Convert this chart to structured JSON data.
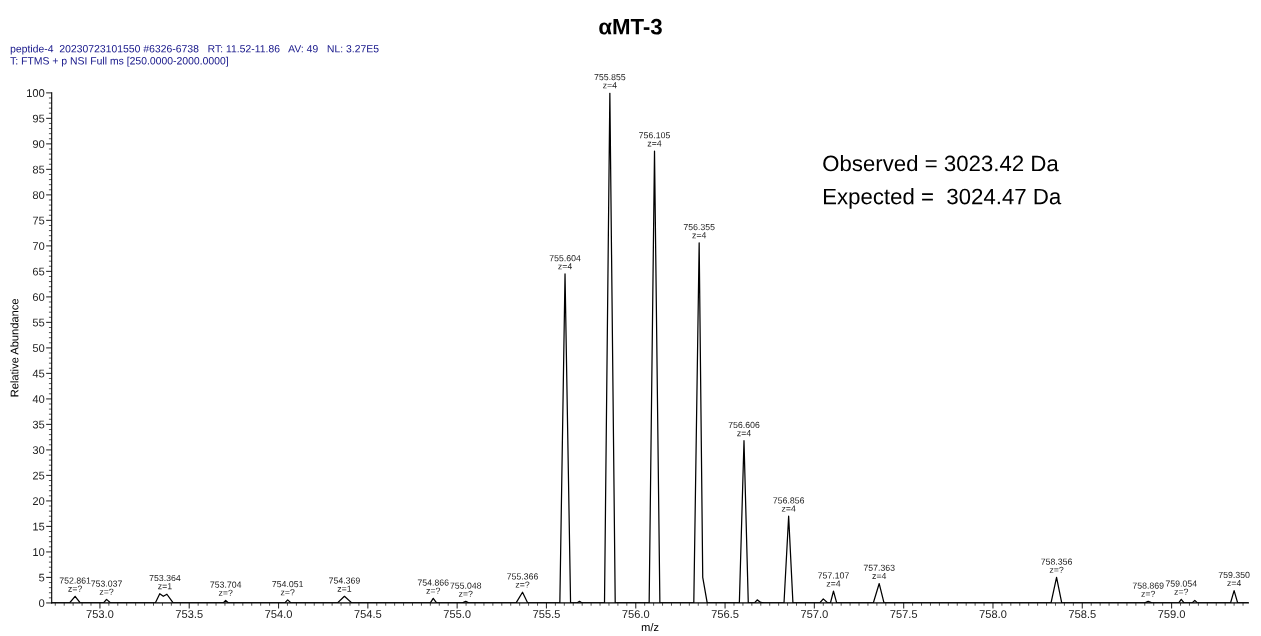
{
  "chart_data": {
    "type": "line",
    "title": "αMT-3",
    "xlabel": "m/z",
    "ylabel": "Relative Abundance",
    "xlim": [
      752.73,
      759.43
    ],
    "ylim": [
      0,
      100
    ],
    "xticks": [
      {
        "value": 753.0,
        "label": "753.0"
      },
      {
        "value": 753.5,
        "label": "753.5"
      },
      {
        "value": 754.0,
        "label": "754.0"
      },
      {
        "value": 754.5,
        "label": "754.5"
      },
      {
        "value": 755.0,
        "label": "755.0"
      },
      {
        "value": 755.5,
        "label": "755.5"
      },
      {
        "value": 756.0,
        "label": "756.0"
      },
      {
        "value": 756.5,
        "label": "756.5"
      },
      {
        "value": 757.0,
        "label": "757.0"
      },
      {
        "value": 757.5,
        "label": "757.5"
      },
      {
        "value": 758.0,
        "label": "758.0"
      },
      {
        "value": 758.5,
        "label": "758.5"
      },
      {
        "value": 759.0,
        "label": "759.0"
      }
    ],
    "yticks": [
      0,
      5,
      10,
      15,
      20,
      25,
      30,
      35,
      40,
      45,
      50,
      55,
      60,
      65,
      70,
      75,
      80,
      85,
      90,
      95,
      100
    ],
    "grid": false,
    "marker": "none",
    "line_style": "solid",
    "series": [
      {
        "color": "#000000",
        "x": [
          752.73,
          752.83,
          752.861,
          752.89,
          753.02,
          753.037,
          753.06,
          753.31,
          753.335,
          753.355,
          753.375,
          753.41,
          753.69,
          753.704,
          753.72,
          754.035,
          754.051,
          754.07,
          754.33,
          754.369,
          754.41,
          754.85,
          754.866,
          754.885,
          755.03,
          755.048,
          755.065,
          755.33,
          755.366,
          755.395,
          755.575,
          755.604,
          755.635,
          755.67,
          755.685,
          755.7,
          755.825,
          755.855,
          755.885,
          756.075,
          756.105,
          756.135,
          756.325,
          756.355,
          756.375,
          756.4,
          756.58,
          756.606,
          756.63,
          756.665,
          756.68,
          756.7,
          756.72,
          756.83,
          756.856,
          756.88,
          757.03,
          757.05,
          757.075,
          757.09,
          757.107,
          757.125,
          757.33,
          757.363,
          757.39,
          758.325,
          758.356,
          758.385,
          758.85,
          758.869,
          758.89,
          759.04,
          759.054,
          759.07,
          759.115,
          759.13,
          759.145,
          759.33,
          759.35,
          759.37,
          759.43
        ],
        "values": [
          0,
          0,
          1.3,
          0,
          0,
          0.7,
          0,
          0,
          1.8,
          1.3,
          1.7,
          0,
          0,
          0.5,
          0,
          0,
          0.6,
          0,
          0,
          1.3,
          0,
          0,
          0.9,
          0,
          0,
          0.3,
          0,
          0,
          2.1,
          0,
          0,
          64.5,
          0,
          0,
          0.3,
          0,
          0,
          100,
          0,
          0,
          88.6,
          0,
          0,
          70.6,
          5,
          0,
          0,
          31.8,
          0,
          0,
          0.6,
          0.1,
          0,
          0,
          17,
          0,
          0,
          0.8,
          0,
          0,
          2.3,
          0,
          0,
          3.8,
          0,
          0,
          5,
          0,
          0,
          0.3,
          0,
          0,
          0.7,
          0,
          0,
          0.5,
          0,
          0,
          2.4,
          0,
          0
        ]
      }
    ],
    "annotations": [
      "peptide-4  20230723101550 #6326-6738   RT: 11.52-11.86   AV: 49   NL: 3.27E5",
      "T: FTMS + p NSI Full ms [250.0000-2000.0000]",
      "Observed = 3023.42 Da",
      "Expected =  3024.47 Da",
      {
        "text": "752.861\nz=?",
        "x": 752.861,
        "y": 1.3
      },
      {
        "text": "753.037\nz=?",
        "x": 753.037,
        "y": 0.7
      },
      {
        "text": "753.364\nz=1",
        "x": 753.364,
        "y": 1.8
      },
      {
        "text": "753.704\nz=?",
        "x": 753.704,
        "y": 0.5
      },
      {
        "text": "754.051\nz=?",
        "x": 754.051,
        "y": 0.6
      },
      {
        "text": "754.369\nz=1",
        "x": 754.369,
        "y": 1.3
      },
      {
        "text": "754.866\nz=?",
        "x": 754.866,
        "y": 0.9
      },
      {
        "text": "755.048\nz=?",
        "x": 755.048,
        "y": 0.3
      },
      {
        "text": "755.366\nz=?",
        "x": 755.366,
        "y": 2.1
      },
      {
        "text": "755.604\nz=4",
        "x": 755.604,
        "y": 64.5
      },
      {
        "text": "755.855\nz=4",
        "x": 755.855,
        "y": 100
      },
      {
        "text": "756.105\nz=4",
        "x": 756.105,
        "y": 88.6
      },
      {
        "text": "756.355\nz=4",
        "x": 756.355,
        "y": 70.6
      },
      {
        "text": "756.606\nz=4",
        "x": 756.606,
        "y": 31.8
      },
      {
        "text": "756.856\nz=4",
        "x": 756.856,
        "y": 17
      },
      {
        "text": "757.107\nz=4",
        "x": 757.107,
        "y": 2.3
      },
      {
        "text": "757.363\nz=4",
        "x": 757.363,
        "y": 3.8
      },
      {
        "text": "758.356\nz=?",
        "x": 758.356,
        "y": 5
      },
      {
        "text": "758.869\nz=?",
        "x": 758.869,
        "y": 0.3
      },
      {
        "text": "759.054\nz=?",
        "x": 759.054,
        "y": 0.7
      },
      {
        "text": "759.350\nz=4",
        "x": 759.35,
        "y": 2.4
      }
    ]
  }
}
